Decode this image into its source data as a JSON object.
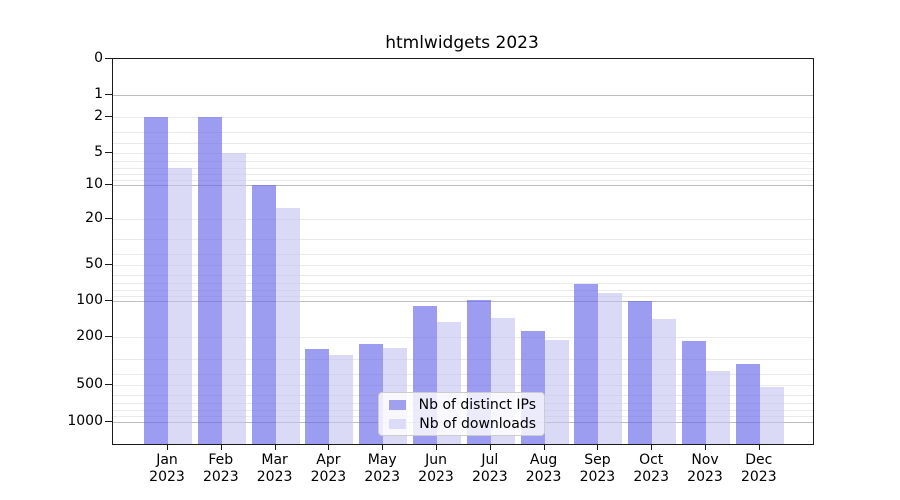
{
  "title": "htmlwidgets 2023",
  "chart_data": {
    "type": "bar",
    "title": "htmlwidgets 2023",
    "categories": [
      "Jan 2023",
      "Feb 2023",
      "Mar 2023",
      "Apr 2023",
      "May 2023",
      "Jun 2023",
      "Jul 2023",
      "Aug 2023",
      "Sep 2023",
      "Oct 2023",
      "Nov 2023",
      "Dec 2023"
    ],
    "x_tick_line1": [
      "Jan",
      "Feb",
      "Mar",
      "Apr",
      "May",
      "Jun",
      "Jul",
      "Aug",
      "Sep",
      "Oct",
      "Nov",
      "Dec"
    ],
    "x_tick_line2": [
      "2023",
      "2023",
      "2023",
      "2023",
      "2023",
      "2023",
      "2023",
      "2023",
      "2023",
      "2023",
      "2023",
      "2023"
    ],
    "series": [
      {
        "name": "Nb of distinct IPs",
        "legend_color": "#a0a0ee",
        "values": [
          2,
          2,
          10,
          250,
          225,
          110,
          98,
          175,
          72,
          100,
          215,
          330
        ]
      },
      {
        "name": "Nb of downloads",
        "legend_color": "#dcdcf8",
        "values": [
          7,
          5,
          16,
          280,
          245,
          150,
          137,
          210,
          85,
          140,
          380,
          520
        ]
      }
    ],
    "xlabel": "",
    "ylabel": "",
    "y_scale": "log1p",
    "y_ticks": [
      0,
      1,
      2,
      5,
      10,
      20,
      50,
      100,
      200,
      500,
      1000
    ],
    "ylim": [
      0,
      1500
    ],
    "grid": "horizontal; minor log gridlines light, decade gridlines darker",
    "legend_position": "inside lower-center-left"
  },
  "legend": {
    "items": [
      {
        "label": "Nb of distinct IPs",
        "color": "#a0a0ee"
      },
      {
        "label": "Nb of downloads",
        "color": "#dcdcf8"
      }
    ]
  },
  "colors": {
    "bar_distinct_ips": "#9c9cee",
    "bar_downloads": "#dadaf7",
    "gridline_minor": "#eaeaea",
    "gridline_major": "#bdbdbd",
    "spine": "#1a1a1a",
    "background": "#ffffff"
  }
}
